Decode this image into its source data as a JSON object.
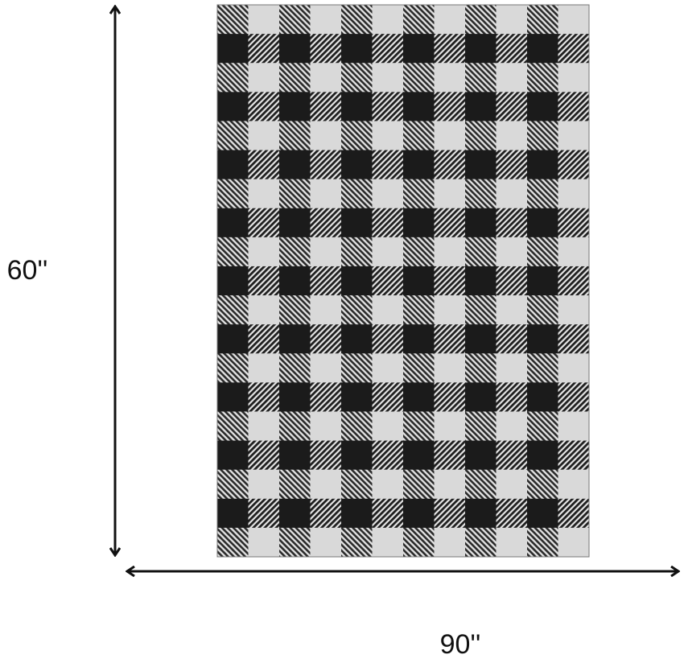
{
  "height_label": "60''",
  "width_label": "90''"
}
